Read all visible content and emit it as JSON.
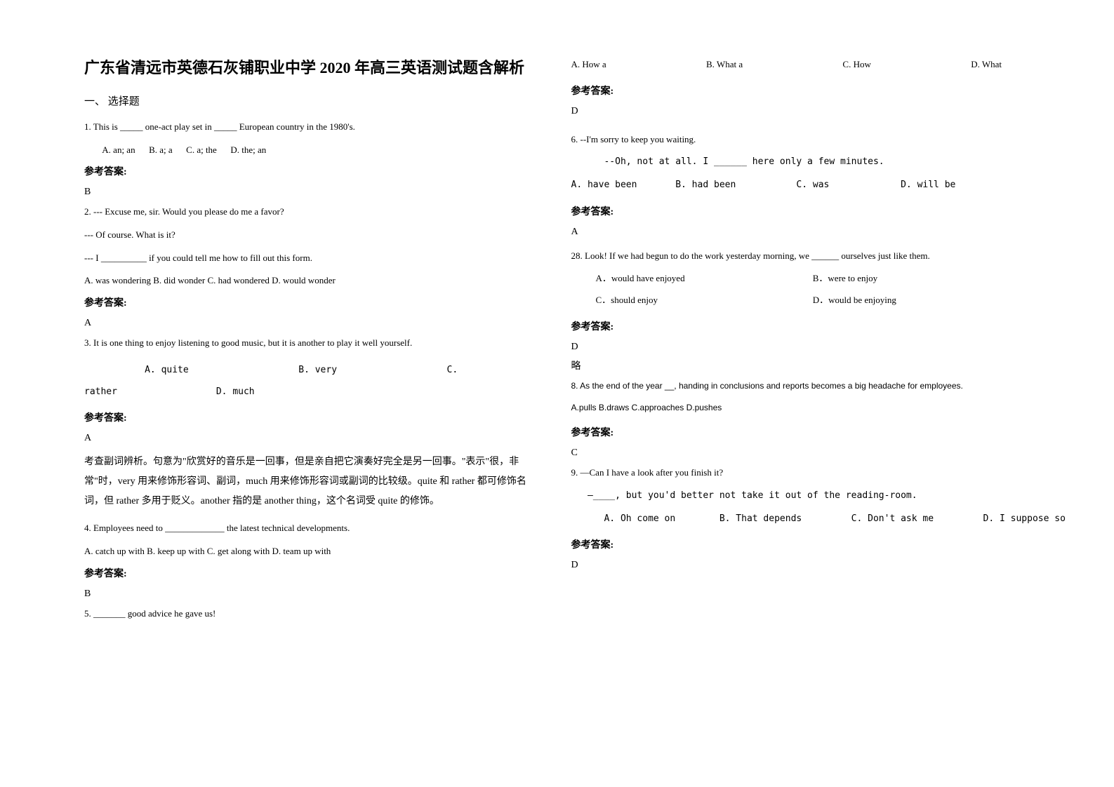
{
  "doc": {
    "title": "广东省清远市英德石灰铺职业中学 2020 年高三英语测试题含解析",
    "section1": "一、 选择题",
    "answer_label": "参考答案:",
    "q1": {
      "text": "1. This is _____ one-act play set in _____ European country in the 1980's.",
      "opts": "        A. an; an      B. a; a      C. a; the      D. the; an",
      "ans": "B"
    },
    "q2": {
      "l1": "2. --- Excuse me, sir. Would you please do me a favor?",
      "l2": "--- Of course. What is it?",
      "l3": "--- I __________ if you could tell me how to fill out this form.",
      "opts": "A. was wondering    B. did wonder       C. had wondered    D. would wonder",
      "ans": "A"
    },
    "q3": {
      "text": "3. It is one thing to enjoy listening to good music, but it is     another to play it well yourself.",
      "opts_l1": "           A. quite                    B. very                    C.",
      "opts_l2": "rather                  D. much",
      "ans": "A",
      "explain": "考查副词辨析。句意为\"欣赏好的音乐是一回事，但是亲自把它演奏好完全是另一回事。\"表示\"很，非常\"时，very 用来修饰形容词、副词，much 用来修饰形容词或副词的比较级。quite 和 rather 都可修饰名词，但 rather 多用于贬义。another 指的是 another thing，这个名词受 quite 的修饰。"
    },
    "q4": {
      "text": "4. Employees need to _____________ the latest technical developments.",
      "opts": "  A. catch up with               B. keep up with                 C. get along with                 D. team up with",
      "ans": "B"
    },
    "q5": {
      "text": "5. _______ good advice he gave us!",
      "a": "A. How a",
      "b": "B.  What a",
      "c": "C. How",
      "d": "D. What",
      "ans": "D"
    },
    "q6": {
      "l1": "6. --I'm sorry to keep you waiting.",
      "l2": "      --Oh, not at all. I ______ here only a few minutes.",
      "opts": "A. have been       B. had been           C. was             D. will be",
      "ans": "A"
    },
    "q7": {
      "text": "28. Look! If we had begun to do the work yesterday morning, we ______ ourselves just like them.",
      "a": "A．would have enjoyed",
      "b": "B．were to enjoy",
      "c": "C．should enjoy",
      "d": "D．would be enjoying",
      "ans": "D",
      "note": "略"
    },
    "q8": {
      "text": "8. As the end of the year __, handing in conclusions and reports becomes a big headache for employees.",
      "opts": "A.pulls   B.draws         C.approaches    D.pushes",
      "ans": "C"
    },
    "q9": {
      "l1": "9. —Can I have a look after you finish it?",
      "l2": "   —____, but you'd better not take it out of the reading-room.",
      "opts": "      A. Oh come on        B. That depends         C. Don't ask me         D. I suppose so",
      "ans": "D"
    }
  }
}
